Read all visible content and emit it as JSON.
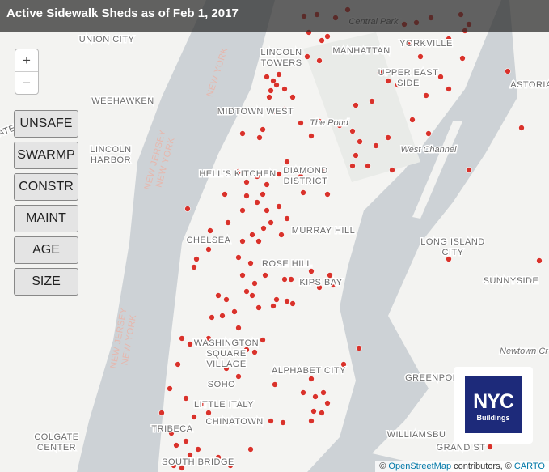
{
  "header": {
    "title": "Active Sidewalk Sheds as of Feb 1, 2017"
  },
  "zoom": {
    "in": "+",
    "out": "−"
  },
  "filters": [
    "UNSAFE",
    "SWARMP",
    "CONSTR",
    "MAINT",
    "AGE",
    "SIZE"
  ],
  "map_labels": [
    {
      "lines": [
        "UNION CITY"
      ]
    },
    {
      "lines": [
        "WEEHAWKEN"
      ]
    },
    {
      "lines": [
        "LINCOLN",
        "TOWERS"
      ]
    },
    {
      "lines": [
        "MANHATTAN"
      ]
    },
    {
      "lines": [
        "YORKVILLE"
      ]
    },
    {
      "lines": [
        "Central Park"
      ]
    },
    {
      "lines": [
        "UPPER EAST",
        "SIDE"
      ]
    },
    {
      "lines": [
        "ASTORIA"
      ]
    },
    {
      "lines": [
        "MIDTOWN WEST"
      ]
    },
    {
      "lines": [
        "The Pond"
      ]
    },
    {
      "lines": [
        "West Channel"
      ]
    },
    {
      "lines": [
        "LINCOLN",
        "HARBOR"
      ]
    },
    {
      "lines": [
        "NEW YORK"
      ]
    },
    {
      "lines": [
        "NEW JERSEY",
        "NEW YORK"
      ]
    },
    {
      "lines": [
        "HELL'S KITCHEN"
      ]
    },
    {
      "lines": [
        "DIAMOND",
        "DISTRICT"
      ]
    },
    {
      "lines": [
        "MURRAY HILL"
      ]
    },
    {
      "lines": [
        "CHELSEA"
      ]
    },
    {
      "lines": [
        "LONG ISLAND",
        "CITY"
      ]
    },
    {
      "lines": [
        "SUNNYSIDE"
      ]
    },
    {
      "lines": [
        "ROSE HILL"
      ]
    },
    {
      "lines": [
        "KIPS BAY"
      ]
    },
    {
      "lines": [
        "NEW JERSEY",
        "NEW YORK"
      ]
    },
    {
      "lines": [
        "WASHINGTON",
        "SQUARE",
        "VILLAGE"
      ]
    },
    {
      "lines": [
        "ALPHABET CITY"
      ]
    },
    {
      "lines": [
        "Newtown Cr"
      ]
    },
    {
      "lines": [
        "GREENPOINT"
      ]
    },
    {
      "lines": [
        "SOHO"
      ]
    },
    {
      "lines": [
        "LITTLE ITALY"
      ]
    },
    {
      "lines": [
        "CHINATOWN"
      ]
    },
    {
      "lines": [
        "TRIBECA"
      ]
    },
    {
      "lines": [
        "COLGATE",
        "CENTER"
      ]
    },
    {
      "lines": [
        "WILLIAMSBU"
      ]
    },
    {
      "lines": [
        "GRAND ST"
      ]
    },
    {
      "lines": [
        "SOUTH BRIDGE"
      ]
    },
    {
      "lines": [
        "PATERSON"
      ]
    }
  ],
  "logo": {
    "main": "NYC",
    "sub": "Buildings"
  },
  "attribution": {
    "prefix": "©",
    "osm": "OpenStreetMap",
    "middle": "contributors, ©",
    "carto": "CARTO"
  }
}
